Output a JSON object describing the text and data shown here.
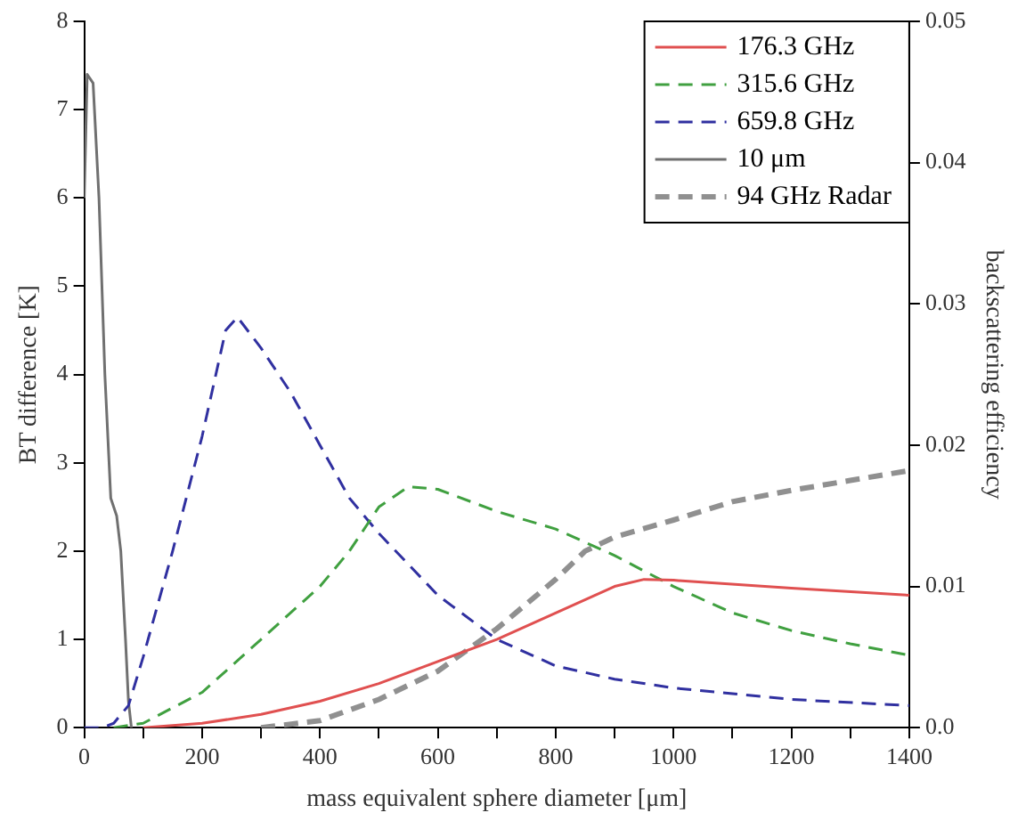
{
  "chart_data": {
    "type": "line",
    "xlabel": "mass equivalent sphere diameter [μm]",
    "ylabel": "BT difference [K]",
    "y2label": "backscattering efficiency",
    "xlim": [
      0,
      1400
    ],
    "xticks": [
      0,
      {
        "value": 100,
        "label": null
      },
      200,
      {
        "value": 300,
        "label": null
      },
      400,
      {
        "value": 500,
        "label": null
      },
      600,
      {
        "value": 700,
        "label": null
      },
      800,
      {
        "value": 900,
        "label": null
      },
      1000,
      {
        "value": 1100,
        "label": null
      },
      1200,
      {
        "value": 1300,
        "label": null
      },
      1400
    ],
    "ylim": [
      0,
      8
    ],
    "yticks": [
      0,
      1,
      2,
      3,
      4,
      5,
      6,
      7,
      8
    ],
    "y2lim": [
      0,
      0.05
    ],
    "y2ticks": [
      {
        "value": 0,
        "label": "0.0"
      },
      0.01,
      0.02,
      0.03,
      0.04,
      0.05
    ],
    "legend": "top right",
    "marker": "none",
    "series": [
      {
        "name": "176.3 GHz",
        "color": "#e05050",
        "line_style": "solid",
        "x": [
          100,
          200,
          300,
          400,
          500,
          600,
          700,
          800,
          900,
          950,
          1000,
          1200,
          1400
        ],
        "values": [
          0,
          0.05,
          0.15,
          0.3,
          0.5,
          0.75,
          1.0,
          1.3,
          1.6,
          1.68,
          1.67,
          1.58,
          1.5
        ]
      },
      {
        "name": "315.6 GHz",
        "color": "#40a040",
        "line_style": "dashed",
        "x": [
          50,
          100,
          200,
          300,
          400,
          450,
          500,
          550,
          600,
          700,
          800,
          900,
          1000,
          1100,
          1200,
          1300,
          1400
        ],
        "values": [
          0,
          0.05,
          0.4,
          1.0,
          1.6,
          2.0,
          2.5,
          2.73,
          2.7,
          2.45,
          2.25,
          1.95,
          1.6,
          1.3,
          1.1,
          0.95,
          0.82
        ]
      },
      {
        "name": "659.8 GHz",
        "color": "#3030a0",
        "line_style": "dashed",
        "x": [
          0,
          30,
          50,
          75,
          100,
          150,
          200,
          240,
          260,
          300,
          350,
          400,
          450,
          500,
          600,
          700,
          800,
          900,
          1000,
          1200,
          1400
        ],
        "values": [
          0,
          0,
          0.05,
          0.25,
          0.8,
          2.0,
          3.3,
          4.5,
          4.65,
          4.3,
          3.8,
          3.2,
          2.6,
          2.2,
          1.5,
          1.0,
          0.7,
          0.55,
          0.45,
          0.32,
          0.25
        ]
      },
      {
        "name": "10 μm",
        "color": "#707070",
        "line_style": "solid",
        "x": [
          0,
          5,
          15,
          25,
          35,
          45,
          55,
          62,
          70,
          75,
          80
        ],
        "values": [
          6,
          7.4,
          7.3,
          6,
          4,
          2.6,
          2.4,
          2.0,
          1.0,
          0.3,
          0
        ]
      },
      {
        "name": "94 GHz Radar",
        "color": "#909090",
        "line_style": "dashed",
        "axis": "y2",
        "x": [
          300,
          400,
          500,
          600,
          700,
          800,
          850,
          900,
          1000,
          1100,
          1200,
          1300,
          1400
        ],
        "values": [
          0,
          0.0005,
          0.002,
          0.004,
          0.007,
          0.0105,
          0.0125,
          0.0135,
          0.0147,
          0.016,
          0.0168,
          0.0175,
          0.0182
        ]
      }
    ]
  }
}
